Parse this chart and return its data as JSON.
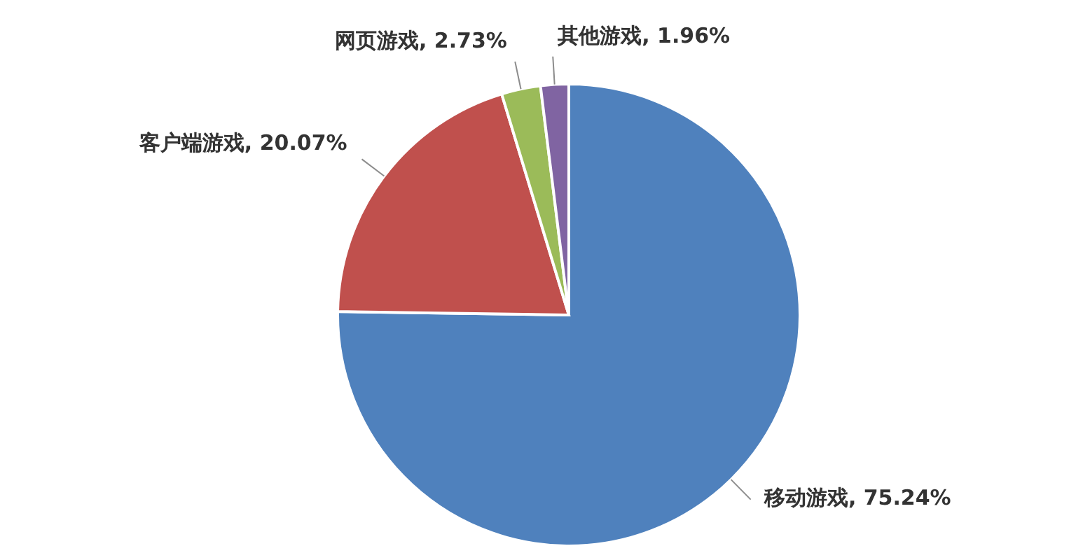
{
  "chart_data": {
    "type": "pie",
    "categories": [
      "移动游戏",
      "客户端游戏",
      "网页游戏",
      "其他游戏"
    ],
    "values": [
      75.24,
      20.07,
      2.73,
      1.96
    ],
    "value_labels": [
      "75.24%",
      "20.07%",
      "2.73%",
      "1.96%"
    ],
    "colors": [
      "#4f81bd",
      "#c0504d",
      "#9bbb59",
      "#8064a2"
    ],
    "legend": false
  }
}
